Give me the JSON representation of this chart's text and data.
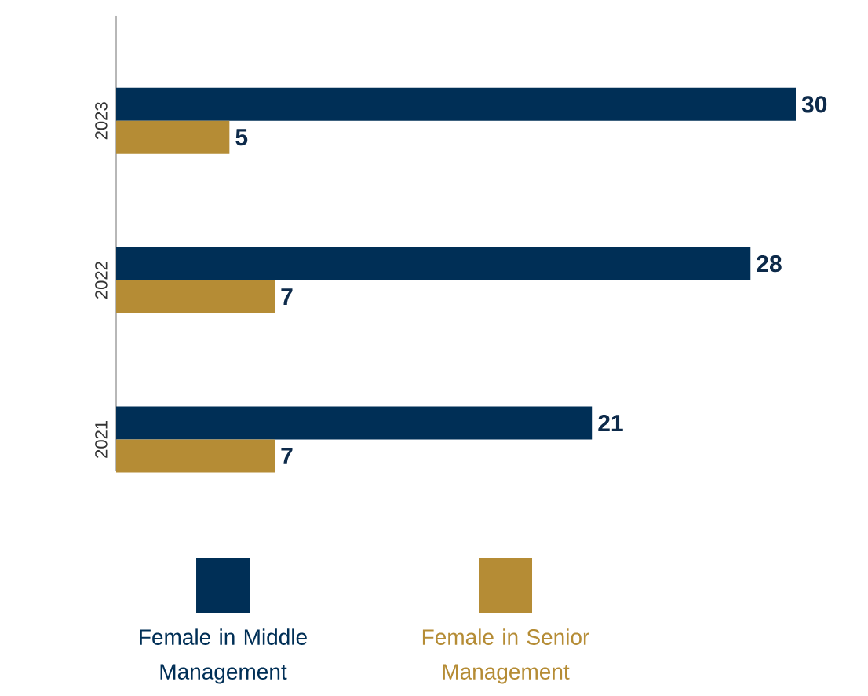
{
  "chart_data": {
    "type": "bar",
    "orientation": "horizontal",
    "categories": [
      "2023",
      "2022",
      "2021"
    ],
    "series": [
      {
        "name": "Female in Middle Management",
        "color": "#002f56",
        "values": [
          30,
          28,
          21
        ]
      },
      {
        "name": "Female in Senior Management",
        "color": "#b58c35",
        "values": [
          5,
          7,
          7
        ]
      }
    ],
    "data_labels": true,
    "legend": "bottom"
  }
}
